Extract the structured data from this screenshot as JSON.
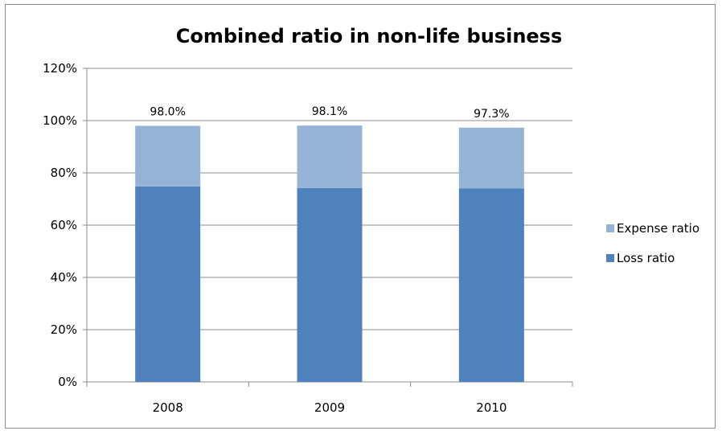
{
  "chart_data": {
    "type": "bar",
    "stacked": true,
    "title": "Combined ratio in non-life business",
    "xlabel": "",
    "ylabel": "",
    "categories": [
      "2008",
      "2009",
      "2010"
    ],
    "series": [
      {
        "name": "Loss ratio",
        "values": [
          74.8,
          74.2,
          74.1
        ],
        "color": "#4f81bd"
      },
      {
        "name": "Expense ratio",
        "values": [
          23.2,
          23.9,
          23.2
        ],
        "color": "#95b3d7"
      }
    ],
    "totals": [
      98.0,
      98.1,
      97.3
    ],
    "total_labels": [
      "98.0%",
      "98.1%",
      "97.3%"
    ],
    "ylim": [
      0,
      120
    ],
    "yticks": [
      0,
      20,
      40,
      60,
      80,
      100,
      120
    ],
    "ytick_labels": [
      "0%",
      "20%",
      "40%",
      "60%",
      "80%",
      "100%",
      "120%"
    ],
    "grid": true,
    "legend_position": "right",
    "legend_order": [
      "Expense ratio",
      "Loss ratio"
    ]
  }
}
